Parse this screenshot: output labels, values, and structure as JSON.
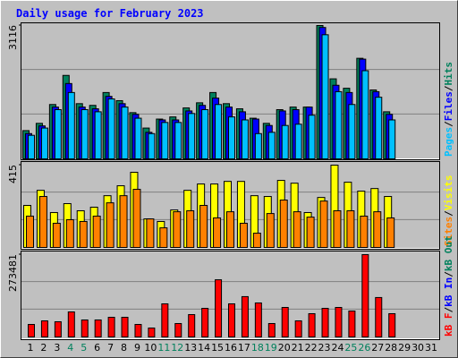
{
  "chart_data": {
    "type": "bar",
    "title": "Daily usage for February 2023",
    "legend_separator": "/",
    "categories": [
      "1",
      "2",
      "3",
      "4",
      "5",
      "6",
      "7",
      "8",
      "9",
      "10",
      "11",
      "12",
      "13",
      "14",
      "15",
      "16",
      "17",
      "18",
      "19",
      "20",
      "21",
      "22",
      "23",
      "24",
      "25",
      "26",
      "27",
      "28",
      "29",
      "30",
      "31"
    ],
    "category_colors": [
      "#000000",
      "#000000",
      "#000000",
      "#00805c",
      "#00805c",
      "#000000",
      "#000000",
      "#000000",
      "#000000",
      "#000000",
      "#00805c",
      "#00805c",
      "#000000",
      "#000000",
      "#000000",
      "#000000",
      "#000000",
      "#00805c",
      "#00805c",
      "#000000",
      "#000000",
      "#000000",
      "#000000",
      "#000000",
      "#00805c",
      "#00805c",
      "#000000",
      "#000000",
      "#000000",
      "#000000",
      "#000000"
    ],
    "grid": true,
    "panels": [
      {
        "ylim": [
          0,
          3116
        ],
        "yticks": [
          3116
        ],
        "series": [
          {
            "name": "Hits",
            "color": "#00805c",
            "values": [
              660,
              830,
              1270,
              1950,
              1290,
              1250,
              1550,
              1360,
              1080,
              720,
              930,
              980,
              1190,
              1310,
              1550,
              1290,
              1170,
              950,
              830,
              1150,
              1210,
              1210,
              3116,
              1870,
              1650,
              2350,
              1610,
              1100,
              null,
              null,
              null
            ]
          },
          {
            "name": "Files",
            "color": "#0000ff",
            "values": [
              590,
              770,
              1210,
              1760,
              1210,
              1170,
              1460,
              1290,
              1040,
              620,
              910,
              910,
              1120,
              1250,
              1420,
              1210,
              1100,
              930,
              780,
              1120,
              1150,
              1210,
              3070,
              1720,
              1550,
              2330,
              1570,
              1040,
              null,
              null,
              null
            ]
          },
          {
            "name": "Pages",
            "color": "#00c0ff",
            "values": [
              550,
              720,
              1150,
              1550,
              1150,
              1100,
              1400,
              1210,
              950,
              590,
              850,
              850,
              1060,
              1150,
              1270,
              980,
              910,
              590,
              620,
              780,
              810,
              1020,
              2900,
              1570,
              1270,
              2060,
              1440,
              910,
              null,
              null,
              null
            ]
          }
        ]
      },
      {
        "ylim": [
          0,
          415
        ],
        "yticks": [
          415
        ],
        "series": [
          {
            "name": "Visits",
            "color": "#ffff00",
            "values": [
              212,
              288,
              176,
              221,
              185,
              203,
              261,
              311,
              379,
              144,
              131,
              189,
              288,
              320,
              320,
              333,
              333,
              261,
              257,
              338,
              324,
              176,
              252,
              415,
              329,
              284,
              297,
              257,
              null,
              null,
              null
            ]
          },
          {
            "name": "Sites",
            "color": "#ff8000",
            "values": [
              158,
              257,
              122,
              140,
              131,
              158,
              225,
              261,
              293,
              144,
              99,
              180,
              185,
              212,
              149,
              180,
              122,
              72,
              171,
              239,
              180,
              153,
              234,
              185,
              185,
              158,
              180,
              149,
              null,
              null,
              null
            ]
          }
        ]
      },
      {
        "ylim": [
          0,
          273481
        ],
        "yticks": [
          273481
        ],
        "series": [
          {
            "name": "kB Out",
            "color": "#00805c",
            "values": [
              0,
              0,
              0,
              0,
              0,
              0,
              0,
              0,
              0,
              0,
              0,
              0,
              0,
              0,
              0,
              0,
              0,
              0,
              0,
              0,
              0,
              0,
              0,
              0,
              0,
              0,
              0,
              0,
              null,
              null,
              null
            ]
          },
          {
            "name": "kB In",
            "color": "#0000ff",
            "values": [
              0,
              0,
              0,
              0,
              0,
              0,
              0,
              0,
              0,
              0,
              0,
              0,
              0,
              0,
              0,
              0,
              0,
              0,
              0,
              0,
              0,
              0,
              0,
              0,
              0,
              0,
              0,
              0,
              null,
              null,
              null
            ]
          },
          {
            "name": "kB F",
            "color": "#ff0000",
            "values": [
              41600,
              53500,
              50500,
              83200,
              56500,
              56500,
              65400,
              65400,
              41600,
              29700,
              110000,
              44600,
              74300,
              95100,
              190000,
              110000,
              134000,
              113000,
              44600,
              98100,
              53500,
              77300,
              95100,
              98100,
              86200,
              273481,
              131000,
              77300,
              null,
              null,
              null
            ]
          }
        ]
      }
    ]
  }
}
